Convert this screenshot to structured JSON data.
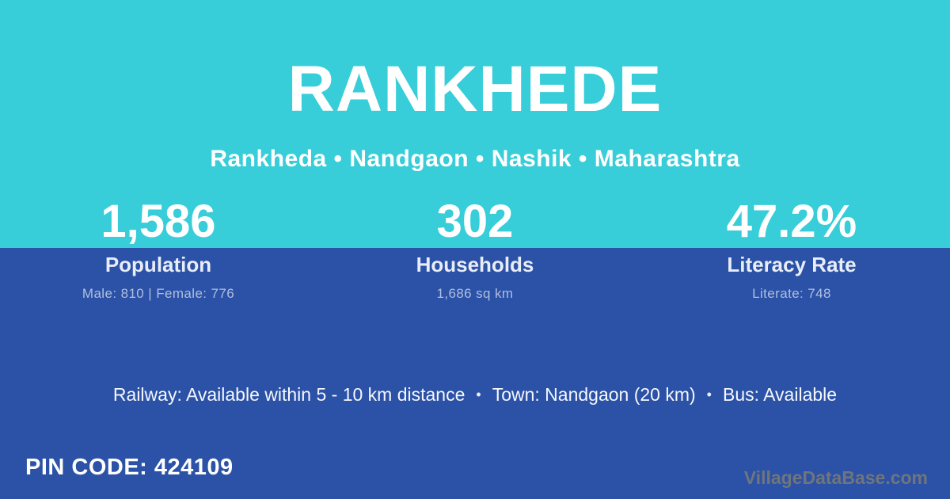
{
  "card": {
    "title": "RANKHEDE",
    "breadcrumb": "Rankheda • Nandgaon • Nashik • Maharashtra"
  },
  "stats": [
    {
      "value": "1,586",
      "label": "Population",
      "detail": "Male: 810 | Female: 776"
    },
    {
      "value": "302",
      "label": "Households",
      "detail": "1,686 sq km"
    },
    {
      "value": "47.2%",
      "label": "Literacy Rate",
      "detail": "Literate: 748"
    }
  ],
  "amenities": {
    "bullet": "•",
    "items": [
      "Railway: Available within 5 - 10 km distance",
      "Town: Nandgaon (20 km)",
      "Bus: Available"
    ]
  },
  "footer": {
    "pin_code": "PIN CODE: 424109",
    "watermark": "VillageDataBase.com"
  },
  "colors": {
    "top_background": "#37cdd9",
    "bottom_background": "#2b52a6",
    "text_primary": "#ffffff",
    "text_label": "#e8edf8",
    "text_detail": "#b0bedf",
    "text_watermark": "#70757d"
  }
}
